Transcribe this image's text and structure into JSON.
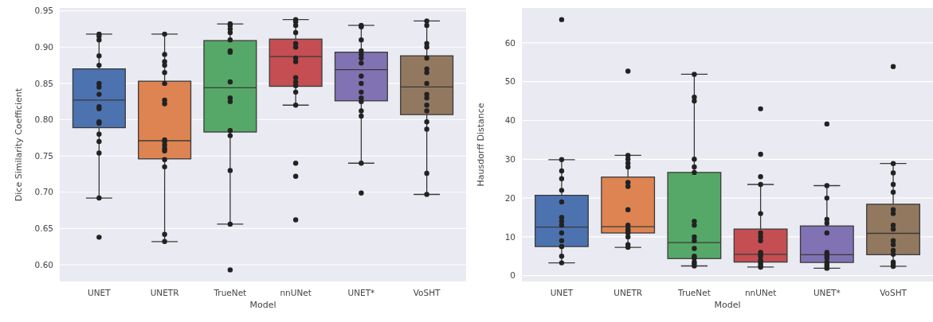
{
  "chart_data": [
    {
      "type": "box",
      "xlabel": "Model",
      "ylabel": "Dice Similarity Coefficient",
      "categories": [
        "UNET",
        "UNETR",
        "TrueNet",
        "nnUNet",
        "UNET*",
        "VoSHT"
      ],
      "colors": [
        "#4c72b0",
        "#dd8452",
        "#55a868",
        "#c44e52",
        "#8172b3",
        "#937860"
      ],
      "grid": "y",
      "ylim": [
        0.577,
        0.954
      ],
      "yticks": [
        {
          "value": 0.6,
          "label": "0.60"
        },
        {
          "value": 0.65,
          "label": "0.65"
        },
        {
          "value": 0.7,
          "label": "0.70"
        },
        {
          "value": 0.75,
          "label": "0.75"
        },
        {
          "value": 0.8,
          "label": "0.80"
        },
        {
          "value": 0.85,
          "label": "0.85"
        },
        {
          "value": 0.9,
          "label": "0.90"
        },
        {
          "value": 0.95,
          "label": "0.95"
        }
      ],
      "boxes": [
        {
          "low": 0.692,
          "q1": 0.789,
          "median": 0.827,
          "q3": 0.87,
          "high": 0.918
        },
        {
          "low": 0.632,
          "q1": 0.746,
          "median": 0.771,
          "q3": 0.853,
          "high": 0.918
        },
        {
          "low": 0.656,
          "q1": 0.783,
          "median": 0.844,
          "q3": 0.909,
          "high": 0.932
        },
        {
          "low": 0.82,
          "q1": 0.846,
          "median": 0.887,
          "q3": 0.911,
          "high": 0.938
        },
        {
          "low": 0.74,
          "q1": 0.826,
          "median": 0.869,
          "q3": 0.893,
          "high": 0.93
        },
        {
          "low": 0.697,
          "q1": 0.807,
          "median": 0.845,
          "q3": 0.888,
          "high": 0.936
        }
      ],
      "series": [
        {
          "type": "scatter",
          "color": "#222222",
          "marker": "circle",
          "x": [
            "UNET",
            "UNET",
            "UNET",
            "UNET",
            "UNET",
            "UNET",
            "UNET",
            "UNET",
            "UNET",
            "UNET",
            "UNET",
            "UNET",
            "UNET",
            "UNET",
            "UNET",
            "UNET",
            "UNET",
            "UNETR",
            "UNETR",
            "UNETR",
            "UNETR",
            "UNETR",
            "UNETR",
            "UNETR",
            "UNETR",
            "UNETR",
            "UNETR",
            "UNETR",
            "UNETR",
            "UNETR",
            "UNETR",
            "UNETR",
            "UNETR",
            "UNETR",
            "TrueNet",
            "TrueNet",
            "TrueNet",
            "TrueNet",
            "TrueNet",
            "TrueNet",
            "TrueNet",
            "TrueNet",
            "TrueNet",
            "TrueNet",
            "TrueNet",
            "TrueNet",
            "TrueNet",
            "TrueNet",
            "TrueNet",
            "nnUNet",
            "nnUNet",
            "nnUNet",
            "nnUNet",
            "nnUNet",
            "nnUNet",
            "nnUNet",
            "nnUNet",
            "nnUNet",
            "nnUNet",
            "nnUNet",
            "nnUNet",
            "nnUNet",
            "nnUNet",
            "nnUNet",
            "nnUNet",
            "UNET*",
            "UNET*",
            "UNET*",
            "UNET*",
            "UNET*",
            "UNET*",
            "UNET*",
            "UNET*",
            "UNET*",
            "UNET*",
            "UNET*",
            "UNET*",
            "UNET*",
            "UNET*",
            "UNET*",
            "UNET*",
            "VoSHT",
            "VoSHT",
            "VoSHT",
            "VoSHT",
            "VoSHT",
            "VoSHT",
            "VoSHT",
            "VoSHT",
            "VoSHT",
            "VoSHT",
            "VoSHT",
            "VoSHT",
            "VoSHT",
            "VoSHT",
            "VoSHT",
            "VoSHT"
          ],
          "values": [
            0.918,
            0.915,
            0.91,
            0.888,
            0.875,
            0.85,
            0.845,
            0.835,
            0.818,
            0.815,
            0.797,
            0.795,
            0.78,
            0.77,
            0.754,
            0.692,
            0.638,
            0.918,
            0.89,
            0.88,
            0.875,
            0.865,
            0.85,
            0.827,
            0.822,
            0.772,
            0.77,
            0.765,
            0.76,
            0.757,
            0.745,
            0.735,
            0.642,
            0.632,
            0.932,
            0.93,
            0.925,
            0.92,
            0.91,
            0.895,
            0.893,
            0.852,
            0.83,
            0.825,
            0.785,
            0.778,
            0.73,
            0.656,
            0.593,
            0.938,
            0.935,
            0.93,
            0.92,
            0.905,
            0.9,
            0.885,
            0.88,
            0.858,
            0.852,
            0.847,
            0.838,
            0.82,
            0.74,
            0.722,
            0.662,
            0.93,
            0.928,
            0.91,
            0.895,
            0.89,
            0.885,
            0.878,
            0.86,
            0.85,
            0.838,
            0.83,
            0.825,
            0.812,
            0.805,
            0.74,
            0.699,
            0.936,
            0.93,
            0.905,
            0.9,
            0.885,
            0.87,
            0.865,
            0.85,
            0.835,
            0.83,
            0.82,
            0.812,
            0.797,
            0.787,
            0.726,
            0.697
          ]
        }
      ]
    },
    {
      "type": "box",
      "xlabel": "Model",
      "ylabel": "Hausdorff Distance",
      "categories": [
        "UNET",
        "UNETR",
        "TrueNet",
        "nnUNet",
        "UNET*",
        "VoSHT"
      ],
      "colors": [
        "#4c72b0",
        "#dd8452",
        "#55a868",
        "#c44e52",
        "#8172b3",
        "#937860"
      ],
      "grid": "y",
      "ylim": [
        -1.5,
        69
      ],
      "yticks": [
        0,
        10,
        20,
        30,
        40,
        50,
        60
      ],
      "boxes": [
        {
          "low": 3.3,
          "q1": 7.5,
          "median": 12.5,
          "q3": 20.7,
          "high": 29.9
        },
        {
          "low": 7.3,
          "q1": 11,
          "median": 12.6,
          "q3": 25.4,
          "high": 31
        },
        {
          "low": 2.5,
          "q1": 4.4,
          "median": 8.5,
          "q3": 26.6,
          "high": 51.9
        },
        {
          "low": 2.2,
          "q1": 3.5,
          "median": 5.5,
          "q3": 12,
          "high": 23.5
        },
        {
          "low": 1.9,
          "q1": 3.4,
          "median": 5.4,
          "q3": 12.8,
          "high": 23.2
        },
        {
          "low": 2.4,
          "q1": 5.4,
          "median": 10.9,
          "q3": 18.4,
          "high": 28.9
        }
      ],
      "series": [
        {
          "type": "scatter",
          "color": "#222222",
          "marker": "circle",
          "x": [
            "UNET",
            "UNET",
            "UNET",
            "UNET",
            "UNET",
            "UNET",
            "UNET",
            "UNET",
            "UNET",
            "UNET",
            "UNET",
            "UNET",
            "UNET",
            "UNET",
            "UNET",
            "UNETR",
            "UNETR",
            "UNETR",
            "UNETR",
            "UNETR",
            "UNETR",
            "UNETR",
            "UNETR",
            "UNETR",
            "UNETR",
            "UNETR",
            "UNETR",
            "UNETR",
            "UNETR",
            "UNETR",
            "TrueNet",
            "TrueNet",
            "TrueNet",
            "TrueNet",
            "TrueNet",
            "TrueNet",
            "TrueNet",
            "TrueNet",
            "TrueNet",
            "TrueNet",
            "TrueNet",
            "TrueNet",
            "TrueNet",
            "TrueNet",
            "TrueNet",
            "TrueNet",
            "nnUNet",
            "nnUNet",
            "nnUNet",
            "nnUNet",
            "nnUNet",
            "nnUNet",
            "nnUNet",
            "nnUNet",
            "nnUNet",
            "nnUNet",
            "nnUNet",
            "nnUNet",
            "nnUNet",
            "nnUNet",
            "nnUNet",
            "nnUNet",
            "UNET*",
            "UNET*",
            "UNET*",
            "UNET*",
            "UNET*",
            "UNET*",
            "UNET*",
            "UNET*",
            "UNET*",
            "UNET*",
            "UNET*",
            "UNET*",
            "UNET*",
            "UNET*",
            "UNET*",
            "VoSHT",
            "VoSHT",
            "VoSHT",
            "VoSHT",
            "VoSHT",
            "VoSHT",
            "VoSHT",
            "VoSHT",
            "VoSHT",
            "VoSHT",
            "VoSHT",
            "VoSHT",
            "VoSHT",
            "VoSHT",
            "VoSHT",
            "VoSHT"
          ],
          "values": [
            66,
            29.9,
            27,
            25,
            22,
            19,
            15,
            14,
            13,
            11,
            9,
            7.5,
            7.5,
            5,
            3.3,
            52.7,
            31,
            30,
            29,
            28,
            24,
            23,
            17,
            13,
            12,
            11.5,
            11,
            10,
            8,
            7.3,
            51.9,
            46,
            45,
            30,
            28,
            26.6,
            14,
            13,
            10,
            9,
            7,
            5,
            4.5,
            3.5,
            3,
            2.5,
            43,
            31.3,
            25.5,
            23.5,
            16,
            11,
            10,
            9,
            6,
            5.5,
            5,
            4,
            3.5,
            3,
            2.5,
            2.2,
            39.1,
            23.2,
            20,
            14.5,
            13.5,
            11,
            6,
            5.5,
            5,
            4.5,
            3.5,
            3,
            2.5,
            2,
            1.9,
            53.9,
            28.9,
            26.5,
            23.5,
            21.5,
            17,
            16,
            13,
            12,
            9,
            8,
            6.5,
            5.5,
            3.5,
            3,
            2.4
          ]
        }
      ]
    }
  ]
}
